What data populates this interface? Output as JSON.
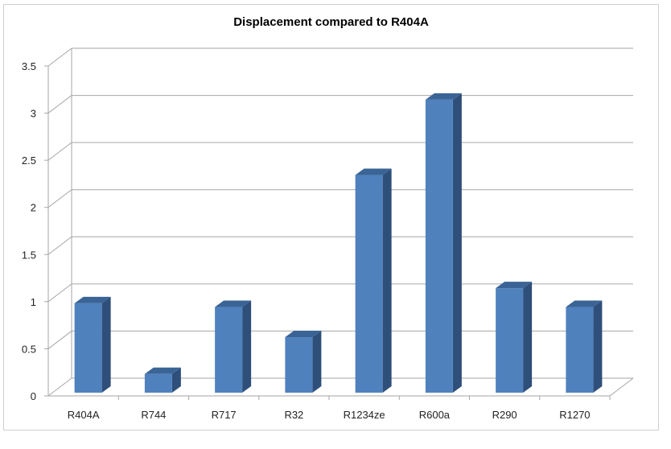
{
  "chart_data": {
    "type": "bar",
    "title": "Displacement compared to R404A",
    "categories": [
      "R404A",
      "R744",
      "R717",
      "R32",
      "R1234ze",
      "R600a",
      "R290",
      "R1270"
    ],
    "values": [
      1.0,
      0.25,
      0.96,
      0.64,
      2.36,
      3.16,
      1.16,
      0.96
    ],
    "ylim": [
      0,
      3.5
    ],
    "yticks": [
      "0",
      "0.5",
      "1",
      "1.5",
      "2",
      "2.5",
      "3",
      "3.5"
    ],
    "grid": true,
    "legend": "none",
    "colors": {
      "bar_front": "#4f81bd",
      "bar_side": "#2f4f7b",
      "bar_top": "#3b6496",
      "grid": "#a6a6a6"
    }
  }
}
